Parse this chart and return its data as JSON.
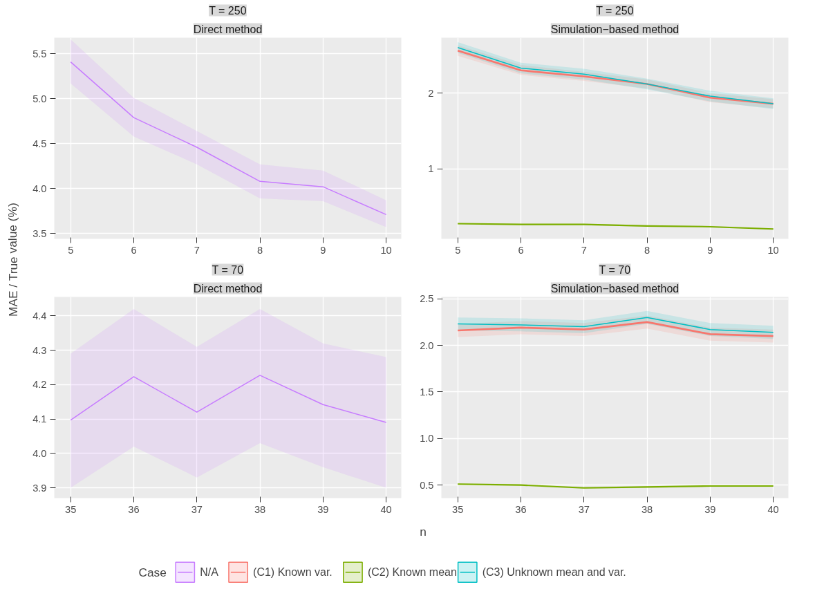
{
  "chart_data": [
    {
      "type": "line",
      "title": "T = 250",
      "subtitle": "Direct method",
      "ylabel": "MAE / True value (%)",
      "legend": "bottom",
      "x": [
        5,
        6,
        7,
        8,
        9,
        10
      ],
      "xlim": [
        4.74,
        10.24
      ],
      "xticks": [
        5,
        6,
        7,
        8,
        9,
        10
      ],
      "ylim": [
        3.44,
        5.68
      ],
      "yticks": [
        3.5,
        {
          "value": 4,
          "label": "4.0"
        },
        4.5,
        {
          "value": 5,
          "label": "5.0"
        },
        5.5
      ],
      "grid": true,
      "series": [
        {
          "name": "N/A",
          "color": "#c77cff",
          "values": [
            5.41,
            4.79,
            4.46,
            4.08,
            4.02,
            3.71
          ],
          "lower": [
            5.17,
            4.58,
            4.27,
            3.89,
            3.86,
            3.57
          ],
          "upper": [
            5.66,
            5.01,
            4.64,
            4.27,
            4.2,
            3.87
          ]
        }
      ]
    },
    {
      "type": "line",
      "title": "T = 250",
      "subtitle": "Simulation−based method",
      "legend": "bottom",
      "x": [
        5,
        6,
        7,
        8,
        9,
        10
      ],
      "xlim": [
        4.74,
        10.24
      ],
      "xticks": [
        5,
        6,
        7,
        8,
        9,
        10
      ],
      "ylim": [
        0.08,
        2.73
      ],
      "yticks": [
        1,
        2
      ],
      "grid": true,
      "series": [
        {
          "name": "(C1) Known var.",
          "color": "#f8766d",
          "values": [
            2.56,
            2.3,
            2.22,
            2.12,
            1.94,
            1.86
          ],
          "lower": [
            2.49,
            2.24,
            2.16,
            2.06,
            1.88,
            1.8
          ],
          "upper": [
            2.63,
            2.37,
            2.28,
            2.18,
            2.0,
            1.92
          ]
        },
        {
          "name": "(C2) Known mean",
          "color": "#7cae00",
          "values": [
            0.28,
            0.27,
            0.27,
            0.25,
            0.24,
            0.21
          ],
          "lower": [
            0.27,
            0.26,
            0.26,
            0.24,
            0.23,
            0.2
          ],
          "upper": [
            0.29,
            0.28,
            0.28,
            0.26,
            0.25,
            0.22
          ]
        },
        {
          "name": "(C3) Unknown mean and var.",
          "color": "#00bfc4",
          "values": [
            2.6,
            2.33,
            2.25,
            2.12,
            1.96,
            1.86
          ],
          "lower": [
            2.53,
            2.26,
            2.18,
            2.05,
            1.89,
            1.79
          ],
          "upper": [
            2.67,
            2.4,
            2.32,
            2.19,
            2.03,
            1.93
          ]
        }
      ]
    },
    {
      "type": "line",
      "title": "T = 70",
      "subtitle": "Direct method",
      "legend": "bottom",
      "x": [
        35,
        36,
        37,
        38,
        39,
        40
      ],
      "xlim": [
        34.74,
        40.24
      ],
      "xticks": [
        35,
        36,
        37,
        38,
        39,
        40
      ],
      "ylim": [
        3.87,
        4.455
      ],
      "yticks": [
        3.9,
        {
          "value": 4,
          "label": "4.0"
        },
        4.1,
        4.2,
        4.3,
        4.4
      ],
      "grid": true,
      "series": [
        {
          "name": "N/A",
          "color": "#c77cff",
          "values": [
            4.097,
            4.223,
            4.12,
            4.227,
            4.142,
            4.09
          ],
          "lower": [
            3.9,
            4.02,
            3.93,
            4.03,
            3.96,
            3.9
          ],
          "upper": [
            4.29,
            4.42,
            4.31,
            4.42,
            4.32,
            4.28
          ]
        }
      ]
    },
    {
      "type": "line",
      "title": "T = 70",
      "subtitle": "Simulation−based method",
      "xlabel": "n",
      "legend_title": "Case",
      "legend": "bottom",
      "x": [
        35,
        36,
        37,
        38,
        39,
        40
      ],
      "xlim": [
        34.74,
        40.24
      ],
      "xticks": [
        35,
        36,
        37,
        38,
        39,
        40
      ],
      "ylim": [
        0.36,
        2.52
      ],
      "yticks": [
        0.5,
        {
          "value": 1,
          "label": "1.0"
        },
        1.5,
        {
          "value": 2,
          "label": "2.0"
        },
        2.5
      ],
      "grid": true,
      "series": [
        {
          "name": "(C1) Known var.",
          "color": "#f8766d",
          "values": [
            2.16,
            2.19,
            2.17,
            2.25,
            2.12,
            2.1
          ],
          "lower": [
            2.09,
            2.12,
            2.1,
            2.18,
            2.05,
            2.03
          ],
          "upper": [
            2.23,
            2.26,
            2.24,
            2.32,
            2.19,
            2.17
          ]
        },
        {
          "name": "(C2) Known mean",
          "color": "#7cae00",
          "values": [
            0.51,
            0.5,
            0.47,
            0.48,
            0.49,
            0.49
          ],
          "lower": [
            0.5,
            0.49,
            0.46,
            0.47,
            0.48,
            0.48
          ],
          "upper": [
            0.52,
            0.51,
            0.48,
            0.49,
            0.5,
            0.5
          ]
        },
        {
          "name": "(C3) Unknown mean and var.",
          "color": "#00bfc4",
          "values": [
            2.23,
            2.22,
            2.2,
            2.3,
            2.17,
            2.14
          ],
          "lower": [
            2.16,
            2.15,
            2.13,
            2.23,
            2.1,
            2.07
          ],
          "upper": [
            2.3,
            2.29,
            2.27,
            2.37,
            2.24,
            2.21
          ]
        }
      ]
    }
  ]
}
